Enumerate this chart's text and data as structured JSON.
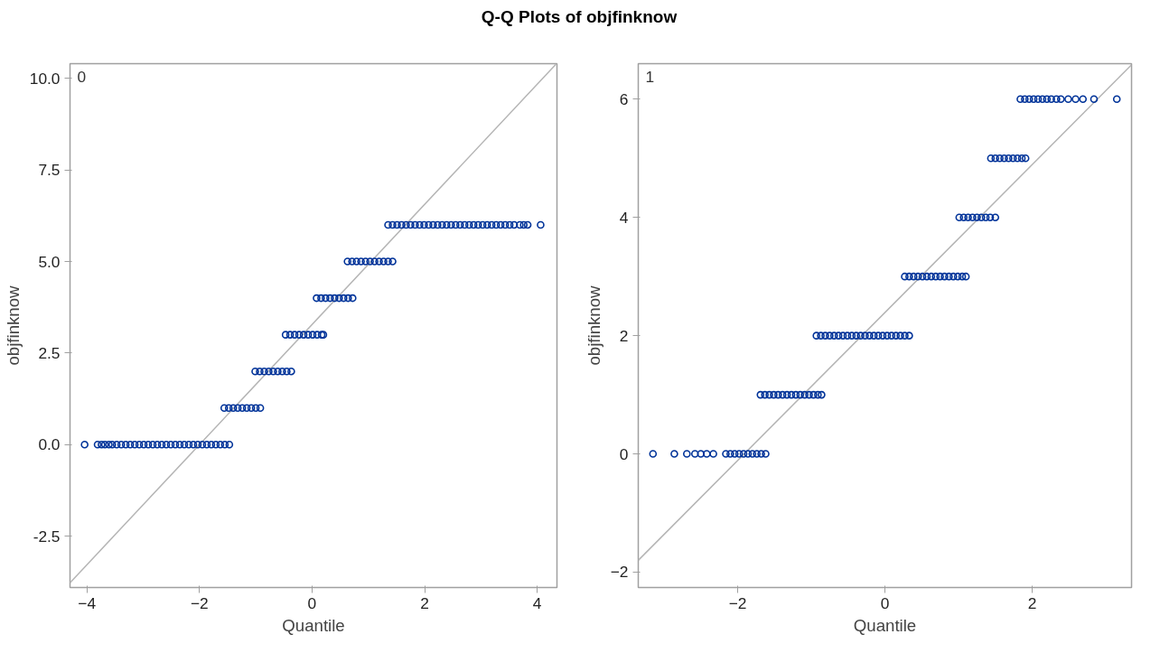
{
  "chart_data": [
    {
      "type": "scatter",
      "title": "Q-Q Plots of objfinknow",
      "xlabel": "Quantile",
      "ylabel": "objfinknow",
      "annotations": [
        "0"
      ],
      "grid": false,
      "xlim": [
        -4.3,
        4.35
      ],
      "ylim": [
        -3.9,
        10.4
      ],
      "xticks": [
        -4,
        -2,
        0,
        2,
        4
      ],
      "yticks": [
        {
          "value": -2.5,
          "label": "-2.5"
        },
        {
          "value": 0,
          "label": "0.0"
        },
        {
          "value": 2.5,
          "label": "2.5"
        },
        {
          "value": 5,
          "label": "5.0"
        },
        {
          "value": 7.5,
          "label": "7.5"
        },
        {
          "value": 10,
          "label": "10.0"
        }
      ],
      "series": [
        {
          "type": "line",
          "color": "#b4b4b4",
          "x": [
            -4.3,
            4.33
          ],
          "values": [
            -3.77,
            10.38
          ]
        },
        {
          "marker": "circle",
          "color": "#003399",
          "x": [
            -4.04,
            -3.81,
            -3.74,
            -3.68,
            -3.61,
            -3.55,
            -3.47,
            -3.39,
            -3.31,
            -3.23,
            -3.15,
            -3.07,
            -2.99,
            -2.91,
            -2.83,
            -2.75,
            -2.67,
            -2.59,
            -2.51,
            -2.43,
            -2.35,
            -2.27,
            -2.19,
            -2.11,
            -2.03,
            -1.95,
            -1.87,
            -1.79,
            -1.71,
            -1.63,
            -1.55,
            -1.47,
            -1.56,
            -1.48,
            -1.4,
            -1.32,
            -1.24,
            -1.16,
            -1.08,
            -1.0,
            -0.92,
            -1.01,
            -0.93,
            -0.85,
            -0.77,
            -0.69,
            -0.61,
            -0.53,
            -0.45,
            -0.37,
            -0.47,
            -0.39,
            -0.31,
            -0.23,
            -0.15,
            -0.07,
            0.01,
            0.09,
            0.17,
            0.2,
            0.08,
            0.16,
            0.24,
            0.32,
            0.4,
            0.48,
            0.56,
            0.64,
            0.72,
            0.63,
            0.71,
            0.79,
            0.87,
            0.95,
            1.03,
            1.11,
            1.19,
            1.27,
            1.35,
            1.43,
            1.35,
            1.43,
            1.51,
            1.59,
            1.67,
            1.75,
            1.83,
            1.91,
            1.99,
            2.07,
            2.15,
            2.23,
            2.31,
            2.39,
            2.47,
            2.55,
            2.63,
            2.71,
            2.79,
            2.87,
            2.95,
            3.03,
            3.11,
            3.19,
            3.27,
            3.35,
            3.43,
            3.51,
            3.59,
            3.69,
            3.76,
            3.83,
            4.06
          ],
          "values": [
            0,
            0,
            0,
            0,
            0,
            0,
            0,
            0,
            0,
            0,
            0,
            0,
            0,
            0,
            0,
            0,
            0,
            0,
            0,
            0,
            0,
            0,
            0,
            0,
            0,
            0,
            0,
            0,
            0,
            0,
            0,
            0,
            1,
            1,
            1,
            1,
            1,
            1,
            1,
            1,
            1,
            2,
            2,
            2,
            2,
            2,
            2,
            2,
            2,
            2,
            3,
            3,
            3,
            3,
            3,
            3,
            3,
            3,
            3,
            3,
            4,
            4,
            4,
            4,
            4,
            4,
            4,
            4,
            4,
            5,
            5,
            5,
            5,
            5,
            5,
            5,
            5,
            5,
            5,
            5,
            6,
            6,
            6,
            6,
            6,
            6,
            6,
            6,
            6,
            6,
            6,
            6,
            6,
            6,
            6,
            6,
            6,
            6,
            6,
            6,
            6,
            6,
            6,
            6,
            6,
            6,
            6,
            6,
            6,
            6,
            6,
            6,
            6
          ]
        }
      ]
    },
    {
      "type": "scatter",
      "xlabel": "Quantile",
      "ylabel": "objfinknow",
      "annotations": [
        "1"
      ],
      "grid": false,
      "xlim": [
        -3.35,
        3.35
      ],
      "ylim": [
        -2.26,
        6.6
      ],
      "xticks": [
        -2,
        0,
        2
      ],
      "yticks": [
        -2,
        0,
        2,
        4,
        6
      ],
      "series": [
        {
          "type": "line",
          "color": "#b4b4b4",
          "x": [
            -3.35,
            3.35
          ],
          "values": [
            -1.8,
            6.58
          ]
        },
        {
          "marker": "circle",
          "color": "#003399",
          "x": [
            -3.15,
            -2.86,
            -2.69,
            -2.58,
            -2.5,
            -2.42,
            -2.33,
            -2.16,
            -2.1,
            -2.04,
            -1.98,
            -1.92,
            -1.86,
            -1.8,
            -1.74,
            -1.68,
            -1.62,
            -1.69,
            -1.63,
            -1.57,
            -1.51,
            -1.45,
            -1.39,
            -1.33,
            -1.27,
            -1.21,
            -1.15,
            -1.09,
            -1.03,
            -0.97,
            -0.91,
            -0.86,
            -0.93,
            -0.87,
            -0.81,
            -0.75,
            -0.69,
            -0.63,
            -0.57,
            -0.51,
            -0.45,
            -0.39,
            -0.33,
            -0.27,
            -0.21,
            -0.15,
            -0.09,
            -0.03,
            0.03,
            0.09,
            0.15,
            0.21,
            0.27,
            0.33,
            0.27,
            0.33,
            0.39,
            0.45,
            0.51,
            0.57,
            0.63,
            0.69,
            0.75,
            0.81,
            0.87,
            0.93,
            0.99,
            1.05,
            1.1,
            1.01,
            1.07,
            1.13,
            1.19,
            1.25,
            1.31,
            1.37,
            1.43,
            1.5,
            1.44,
            1.5,
            1.56,
            1.62,
            1.68,
            1.74,
            1.8,
            1.86,
            1.91,
            1.84,
            1.9,
            1.96,
            2.02,
            2.08,
            2.14,
            2.2,
            2.26,
            2.33,
            2.39,
            2.49,
            2.59,
            2.69,
            2.84,
            3.15
          ],
          "values": [
            0,
            0,
            0,
            0,
            0,
            0,
            0,
            0,
            0,
            0,
            0,
            0,
            0,
            0,
            0,
            0,
            0,
            1,
            1,
            1,
            1,
            1,
            1,
            1,
            1,
            1,
            1,
            1,
            1,
            1,
            1,
            1,
            2,
            2,
            2,
            2,
            2,
            2,
            2,
            2,
            2,
            2,
            2,
            2,
            2,
            2,
            2,
            2,
            2,
            2,
            2,
            2,
            2,
            2,
            3,
            3,
            3,
            3,
            3,
            3,
            3,
            3,
            3,
            3,
            3,
            3,
            3,
            3,
            3,
            4,
            4,
            4,
            4,
            4,
            4,
            4,
            4,
            4,
            5,
            5,
            5,
            5,
            5,
            5,
            5,
            5,
            5,
            6,
            6,
            6,
            6,
            6,
            6,
            6,
            6,
            6,
            6,
            6,
            6,
            6,
            6,
            6
          ]
        }
      ]
    }
  ]
}
